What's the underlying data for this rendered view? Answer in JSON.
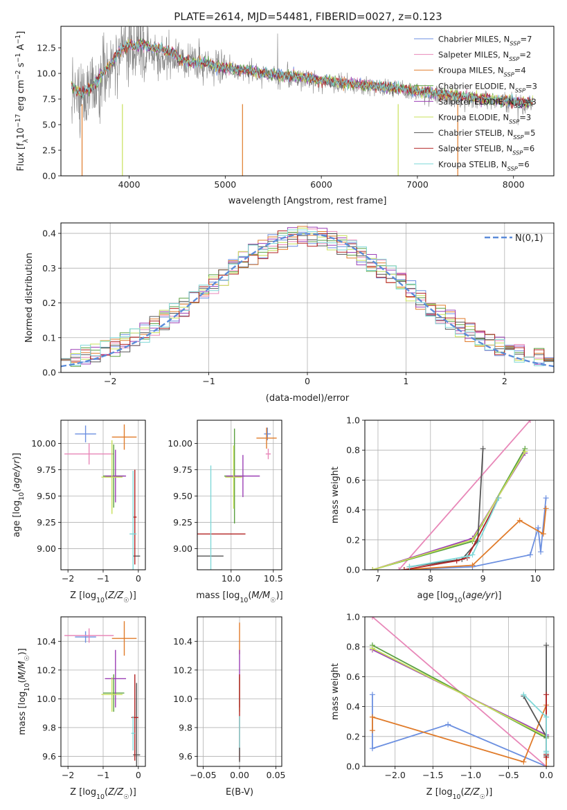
{
  "figure": {
    "title": "PLATE=2614, MJD=54481, FIBERID=0027, z=0.123"
  },
  "series_styles": [
    {
      "name": "Chabrier MILES, N_SSP=7",
      "color": "#6b8fe0"
    },
    {
      "name": "Salpeter MILES, N_SSP=2",
      "color": "#e887b8"
    },
    {
      "name": "Kroupa MILES, N_SSP=4",
      "color": "#e07b2a"
    },
    {
      "name": "Chabrier ELODIE, N_SSP=3",
      "color": "#5aa040"
    },
    {
      "name": "Salpeter ELODIE, N_SSP=3",
      "color": "#9b3fb5"
    },
    {
      "name": "Kroupa ELODIE, N_SSP=3",
      "color": "#c8e05a"
    },
    {
      "name": "Chabrier STELIB, N_SSP=5",
      "color": "#555555"
    },
    {
      "name": "Salpeter STELIB, N_SSP=6",
      "color": "#b22222"
    },
    {
      "name": "Kroupa STELIB, N_SSP=6",
      "color": "#7fd8d8"
    }
  ],
  "chart_data": [
    {
      "id": "spectrum",
      "type": "line",
      "title": "PLATE=2614, MJD=54481, FIBERID=0027, z=0.123",
      "xlabel": "wavelength [Angstrom, rest frame]",
      "ylabel": "Flux [f_λ 10^-17 erg cm^-2 s^-1 A^-1]",
      "xlim": [
        3290,
        8420
      ],
      "ylim": [
        0,
        14.6
      ],
      "xticks": [
        4000,
        5000,
        6000,
        7000,
        8000
      ],
      "yticks": [
        0.0,
        2.5,
        5.0,
        7.5,
        10.0,
        12.5
      ],
      "legend_position": "top-right",
      "data_color": "#808080",
      "envelope": {
        "x": [
          3400,
          3500,
          3600,
          3700,
          3800,
          3900,
          4000,
          4100,
          4200,
          4400,
          4600,
          4800,
          5000,
          5200,
          5400,
          5600,
          5800,
          6000,
          6200,
          6400,
          6600,
          6800,
          7000,
          7200,
          7400,
          7600,
          7800,
          8000,
          8200
        ],
        "y": [
          8.7,
          7.9,
          8.3,
          9.6,
          10.7,
          12.0,
          12.6,
          12.4,
          12.1,
          11.6,
          11.0,
          10.8,
          10.4,
          10.2,
          9.9,
          9.7,
          9.5,
          9.2,
          9.0,
          8.8,
          8.6,
          8.4,
          8.1,
          7.9,
          7.7,
          7.5,
          7.3,
          7.1,
          7.0
        ]
      },
      "legend": [
        "Chabrier MILES, N_SSP=7",
        "Salpeter MILES, N_SSP=2",
        "Kroupa MILES, N_SSP=4",
        "Chabrier ELODIE, N_SSP=3",
        "Salpeter ELODIE, N_SSP=3",
        "Kroupa ELODIE, N_SSP=3",
        "Chabrier STELIB, N_SSP=5",
        "Salpeter STELIB, N_SSP=6",
        "Kroupa STELIB, N_SSP=6"
      ]
    },
    {
      "id": "residuals",
      "type": "histogram",
      "xlabel": "(data-model)/error",
      "ylabel": "Normed distribution",
      "xlim": [
        -2.5,
        2.5
      ],
      "ylim": [
        0,
        0.43
      ],
      "xticks": [
        -2,
        -1,
        0,
        1,
        2
      ],
      "yticks": [
        0.0,
        0.1,
        0.2,
        0.3,
        0.4
      ],
      "bin_width": 0.1,
      "gaussian_label": "N(0,1)",
      "gaussian_color": "#5b8bd9",
      "grid": true
    },
    {
      "id": "age_vs_Z",
      "type": "errorbar",
      "xlabel": "Z [log10(Z/Z☉)]",
      "ylabel": "age [log10(age/yr)]",
      "xlim": [
        -2.2,
        0.2
      ],
      "ylim": [
        8.8,
        10.22
      ],
      "xticks": [
        -2,
        -1,
        0
      ],
      "yticks": [
        9.0,
        9.25,
        9.5,
        9.75,
        10.0
      ],
      "points": [
        {
          "series": 0,
          "x": -1.5,
          "xerr": 0.3,
          "y": 10.09,
          "yerr": 0.08
        },
        {
          "series": 1,
          "x": -1.4,
          "xerr": 0.7,
          "y": 9.9,
          "yerr": 0.1
        },
        {
          "series": 2,
          "x": -0.4,
          "xerr": 0.35,
          "y": 10.06,
          "yerr": 0.12
        },
        {
          "series": 3,
          "x": -0.7,
          "xerr": 0.3,
          "y": 9.69,
          "yerr": 0.3
        },
        {
          "series": 4,
          "x": -0.65,
          "xerr": 0.3,
          "y": 9.69,
          "yerr": 0.25
        },
        {
          "series": 5,
          "x": -0.75,
          "xerr": 0.3,
          "y": 9.68,
          "yerr": 0.35
        },
        {
          "series": 6,
          "x": -0.05,
          "xerr": 0.1,
          "y": 8.93,
          "yerr": 0.0
        },
        {
          "series": 7,
          "x": -0.1,
          "xerr": 0.05,
          "y": 9.3,
          "yerr": 0.45
        },
        {
          "series": 8,
          "x": -0.15,
          "xerr": 0.1,
          "y": 9.14,
          "yerr": 0.6
        }
      ]
    },
    {
      "id": "age_vs_mass",
      "type": "errorbar",
      "xlabel": "mass [log10(M/M☉)]",
      "ylabel": "",
      "xlim": [
        9.6,
        10.6
      ],
      "ylim": [
        8.8,
        10.22
      ],
      "xticks": [
        10.0,
        10.5
      ],
      "yticks": [
        9.0,
        9.25,
        9.5,
        9.75,
        10.0
      ],
      "points": [
        {
          "series": 0,
          "x": 10.43,
          "xerr": 0.04,
          "y": 10.09,
          "yerr": 0.06
        },
        {
          "series": 1,
          "x": 10.44,
          "xerr": 0.03,
          "y": 9.9,
          "yerr": 0.05
        },
        {
          "series": 2,
          "x": 10.42,
          "xerr": 0.12,
          "y": 10.05,
          "yerr": 0.1
        },
        {
          "series": 3,
          "x": 10.04,
          "xerr": 0.12,
          "y": 9.69,
          "yerr": 0.45
        },
        {
          "series": 4,
          "x": 10.14,
          "xerr": 0.2,
          "y": 9.69,
          "yerr": 0.2
        },
        {
          "series": 5,
          "x": 10.03,
          "xerr": 0.1,
          "y": 9.68,
          "yerr": 0.3
        },
        {
          "series": 6,
          "x": 9.61,
          "xerr": 0.3,
          "y": 8.93,
          "yerr": 0.0
        },
        {
          "series": 7,
          "x": 9.87,
          "xerr": 0.3,
          "y": 9.14,
          "yerr": 0.0
        },
        {
          "series": 8,
          "x": 9.76,
          "xerr": 0.0,
          "y": 9.14,
          "yerr": 0.65
        }
      ]
    },
    {
      "id": "mass_weight_vs_age",
      "type": "line",
      "xlabel": "age [log10(age/yr)]",
      "ylabel": "mass weight",
      "xlim": [
        6.75,
        10.35
      ],
      "ylim": [
        0,
        1
      ],
      "xticks": [
        7,
        8,
        9,
        10
      ],
      "yticks": [
        0.0,
        0.2,
        0.4,
        0.6,
        0.8,
        1.0
      ],
      "series": [
        {
          "series": 0,
          "x": [
            7.5,
            8.8,
            9.9,
            10.05,
            10.1,
            10.2
          ],
          "y": [
            0.0,
            0.02,
            0.1,
            0.28,
            0.12,
            0.48
          ]
        },
        {
          "series": 1,
          "x": [
            7.4,
            9.9
          ],
          "y": [
            0.0,
            1.0
          ]
        },
        {
          "series": 2,
          "x": [
            7.5,
            8.8,
            9.7,
            10.15,
            10.2
          ],
          "y": [
            0.0,
            0.03,
            0.33,
            0.24,
            0.41
          ]
        },
        {
          "series": 3,
          "x": [
            6.9,
            8.8,
            9.8
          ],
          "y": [
            0.0,
            0.19,
            0.81
          ]
        },
        {
          "series": 4,
          "x": [
            6.9,
            8.8,
            9.8
          ],
          "y": [
            0.0,
            0.21,
            0.78
          ]
        },
        {
          "series": 5,
          "x": [
            6.9,
            8.8,
            9.8
          ],
          "y": [
            0.0,
            0.2,
            0.79
          ]
        },
        {
          "series": 6,
          "x": [
            7.6,
            8.6,
            8.9,
            9.0
          ],
          "y": [
            0.02,
            0.07,
            0.19,
            0.81
          ]
        },
        {
          "series": 7,
          "x": [
            7.5,
            8.5,
            8.7,
            9.3
          ],
          "y": [
            0.0,
            0.06,
            0.08,
            0.48
          ]
        },
        {
          "series": 8,
          "x": [
            7.6,
            8.7,
            8.8,
            9.3
          ],
          "y": [
            0.02,
            0.09,
            0.1,
            0.48
          ]
        }
      ]
    },
    {
      "id": "mass_vs_Z",
      "type": "errorbar",
      "xlabel": "Z [log10(Z/Z☉)]",
      "ylabel": "mass [log10(M/M☉)]",
      "xlim": [
        -2.2,
        0.2
      ],
      "ylim": [
        9.53,
        10.57
      ],
      "xticks": [
        -2,
        -1,
        0
      ],
      "yticks": [
        9.6,
        9.8,
        10.0,
        10.2,
        10.4
      ],
      "points": [
        {
          "series": 0,
          "x": -1.5,
          "xerr": 0.3,
          "y": 10.43,
          "yerr": 0.04
        },
        {
          "series": 1,
          "x": -1.4,
          "xerr": 0.7,
          "y": 10.44,
          "yerr": 0.05
        },
        {
          "series": 2,
          "x": -0.4,
          "xerr": 0.35,
          "y": 10.42,
          "yerr": 0.12
        },
        {
          "series": 3,
          "x": -0.7,
          "xerr": 0.3,
          "y": 10.04,
          "yerr": 0.13
        },
        {
          "series": 4,
          "x": -0.65,
          "xerr": 0.3,
          "y": 10.14,
          "yerr": 0.2
        },
        {
          "series": 5,
          "x": -0.75,
          "xerr": 0.3,
          "y": 10.03,
          "yerr": 0.12
        },
        {
          "series": 6,
          "x": -0.05,
          "xerr": 0.1,
          "y": 9.61,
          "yerr": 0.5
        },
        {
          "series": 7,
          "x": -0.1,
          "xerr": 0.1,
          "y": 9.87,
          "yerr": 0.3
        },
        {
          "series": 8,
          "x": -0.15,
          "xerr": 0.05,
          "y": 9.76,
          "yerr": 0.12
        }
      ]
    },
    {
      "id": "mass_vs_ebv",
      "type": "errorbar",
      "xlabel": "E(B-V)",
      "ylabel": "",
      "xlim": [
        -0.058,
        0.058
      ],
      "ylim": [
        9.53,
        10.57
      ],
      "xticks": [
        -0.05,
        0.0,
        0.05
      ],
      "yticks": [
        9.6,
        9.8,
        10.0,
        10.2,
        10.4
      ],
      "points": [
        {
          "series": 2,
          "x": 0.0,
          "xerr": 0.0,
          "y": 10.42,
          "yerr": 0.11
        },
        {
          "series": 4,
          "x": 0.0,
          "xerr": 0.0,
          "y": 10.14,
          "yerr": 0.2
        },
        {
          "series": 5,
          "x": 0.0,
          "xerr": 0.0,
          "y": 10.03,
          "yerr": 0.12
        },
        {
          "series": 7,
          "x": 0.0,
          "xerr": 0.0,
          "y": 9.87,
          "yerr": 0.3
        },
        {
          "series": 8,
          "x": 0.0,
          "xerr": 0.0,
          "y": 9.76,
          "yerr": 0.12
        },
        {
          "series": 6,
          "x": 0.0,
          "xerr": 0.0,
          "y": 9.61,
          "yerr": 0.05
        }
      ]
    },
    {
      "id": "mass_weight_vs_Z",
      "type": "line",
      "xlabel": "Z [log10(Z/Z☉)]",
      "ylabel": "mass weight",
      "xlim": [
        -2.4,
        0.1
      ],
      "ylim": [
        0,
        1
      ],
      "xticks": [
        -2.0,
        -1.5,
        -1.0,
        -0.5,
        0.0
      ],
      "yticks": [
        0.0,
        0.2,
        0.4,
        0.6,
        0.8,
        1.0
      ],
      "series": [
        {
          "series": 0,
          "x": [
            -2.3,
            -2.3,
            -1.3,
            0.0,
            0.0
          ],
          "y": [
            0.48,
            0.12,
            0.28,
            0.0,
            0.1
          ]
        },
        {
          "series": 1,
          "x": [
            -2.3,
            0.0
          ],
          "y": [
            1.0,
            0.0
          ]
        },
        {
          "series": 2,
          "x": [
            -2.3,
            -2.3,
            -0.3,
            0.0,
            0.0
          ],
          "y": [
            0.24,
            0.33,
            0.03,
            0.41,
            0.0
          ]
        },
        {
          "series": 3,
          "x": [
            -2.3,
            0.0
          ],
          "y": [
            0.81,
            0.19
          ]
        },
        {
          "series": 4,
          "x": [
            -2.3,
            0.0
          ],
          "y": [
            0.78,
            0.21
          ]
        },
        {
          "series": 5,
          "x": [
            -2.3,
            0.0
          ],
          "y": [
            0.79,
            0.2
          ]
        },
        {
          "series": 6,
          "x": [
            -0.3,
            0.0,
            0.0,
            0.0
          ],
          "y": [
            0.47,
            0.2,
            0.81,
            0.07
          ]
        },
        {
          "series": 7,
          "x": [
            0.0,
            0.0,
            0.0
          ],
          "y": [
            0.48,
            0.06,
            0.08
          ]
        },
        {
          "series": 8,
          "x": [
            -0.3,
            0.0,
            0.0,
            0.0
          ],
          "y": [
            0.48,
            0.33,
            0.09,
            0.1
          ]
        }
      ]
    }
  ]
}
